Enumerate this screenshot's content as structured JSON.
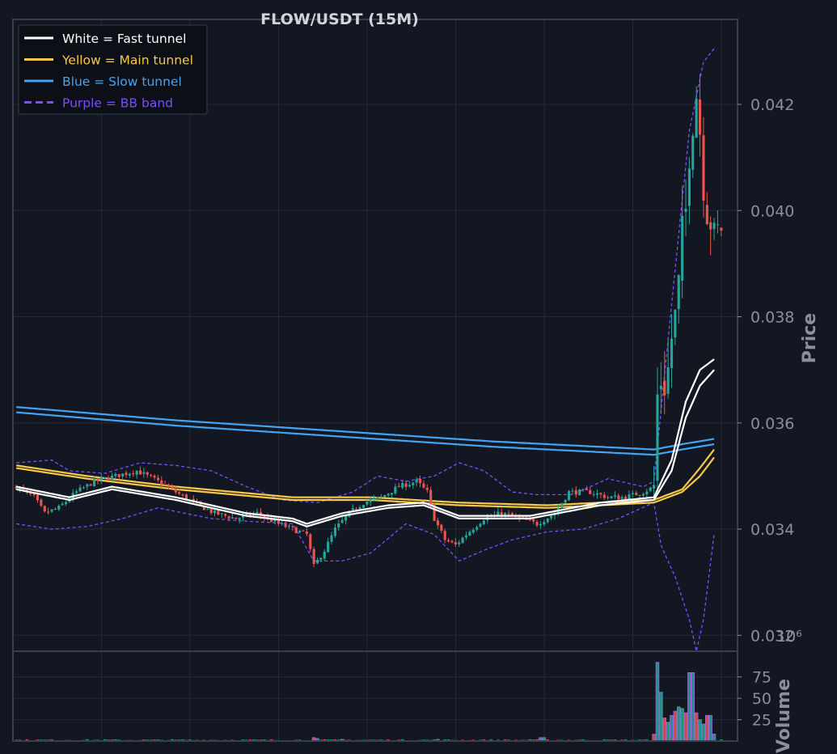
{
  "colors": {
    "background": "#131722",
    "frame": "#3a3e4a",
    "grid": "#252a36",
    "up": "#26a69a",
    "down": "#ef5350",
    "fast": "#ffffff",
    "main": "#f7c948",
    "slow": "#42a5f5",
    "bb": "#7c4dff",
    "text": "#8a8f99",
    "title": "#d1d4dc"
  },
  "chart_data": {
    "type": "candlestick",
    "title": "FLOW/USDT (15M)",
    "price_axis": {
      "label": "Price",
      "ylim": [
        0.0317,
        0.0436
      ],
      "ticks": [
        "0.032",
        "0.034",
        "0.036",
        "0.038",
        "0.040",
        "0.042"
      ],
      "side": "right"
    },
    "volume_axis": {
      "label": "Volume",
      "multiplier": "10⁶",
      "ylim": [
        0,
        105
      ],
      "ticks": [
        "25",
        "50",
        "75"
      ]
    },
    "grid": true,
    "legend": {
      "placement": "top-left",
      "entries": [
        {
          "label": "White = Fast tunnel",
          "color": "#ffffff",
          "style": "solid"
        },
        {
          "label": "Yellow = Main tunnel",
          "color": "#f7c948",
          "style": "solid"
        },
        {
          "label": "Blue = Slow tunnel",
          "color": "#42a5f5",
          "style": "solid"
        },
        {
          "label": "Purple = BB band",
          "color": "#7c4dff",
          "style": "dashed"
        }
      ]
    },
    "candle_count": 200,
    "price_path": [
      [
        0,
        0.0348
      ],
      [
        5,
        0.0346
      ],
      [
        8,
        0.0343
      ],
      [
        12,
        0.0344
      ],
      [
        17,
        0.0347
      ],
      [
        22,
        0.0349
      ],
      [
        28,
        0.035
      ],
      [
        34,
        0.0351
      ],
      [
        40,
        0.0349
      ],
      [
        45,
        0.0347
      ],
      [
        50,
        0.0345
      ],
      [
        56,
        0.0343
      ],
      [
        62,
        0.0342
      ],
      [
        68,
        0.0343
      ],
      [
        74,
        0.0341
      ],
      [
        78,
        0.034
      ],
      [
        82,
        0.0339
      ],
      [
        84,
        0.0333
      ],
      [
        87,
        0.0336
      ],
      [
        90,
        0.034
      ],
      [
        94,
        0.0343
      ],
      [
        98,
        0.0345
      ],
      [
        103,
        0.0346
      ],
      [
        108,
        0.0348
      ],
      [
        113,
        0.0349
      ],
      [
        116,
        0.0347
      ],
      [
        118,
        0.0342
      ],
      [
        121,
        0.0338
      ],
      [
        124,
        0.0337
      ],
      [
        127,
        0.0339
      ],
      [
        132,
        0.0342
      ],
      [
        137,
        0.0343
      ],
      [
        142,
        0.0342
      ],
      [
        147,
        0.0341
      ],
      [
        152,
        0.0343
      ],
      [
        156,
        0.0347
      ],
      [
        162,
        0.0347
      ],
      [
        167,
        0.0346
      ],
      [
        172,
        0.0346
      ],
      [
        177,
        0.0347
      ],
      [
        180,
        0.0348
      ],
      [
        181,
        0.0365
      ],
      [
        182,
        0.0368
      ],
      [
        183,
        0.0367
      ],
      [
        184,
        0.037
      ],
      [
        185,
        0.0376
      ],
      [
        186,
        0.038
      ],
      [
        187,
        0.0386
      ],
      [
        188,
        0.0396
      ],
      [
        189,
        0.04
      ],
      [
        190,
        0.0411
      ],
      [
        191,
        0.0417
      ],
      [
        192,
        0.0422
      ],
      [
        193,
        0.0415
      ],
      [
        194,
        0.0405
      ],
      [
        195,
        0.04
      ],
      [
        196,
        0.0398
      ],
      [
        197,
        0.0395
      ],
      [
        198,
        0.0396
      ],
      [
        199,
        0.0397
      ]
    ],
    "fast_tunnel": [
      [
        [
          0,
          0.0348
        ],
        [
          15,
          0.0346
        ],
        [
          27,
          0.0348
        ],
        [
          45,
          0.0346
        ],
        [
          65,
          0.0343
        ],
        [
          78,
          0.0342
        ],
        [
          82,
          0.0341
        ],
        [
          92,
          0.0343
        ],
        [
          105,
          0.03445
        ],
        [
          115,
          0.0345
        ],
        [
          125,
          0.03425
        ],
        [
          145,
          0.03425
        ],
        [
          165,
          0.0345
        ],
        [
          180,
          0.0346
        ],
        [
          185,
          0.0353
        ],
        [
          189,
          0.0364
        ],
        [
          193,
          0.037
        ],
        [
          197,
          0.0372
        ]
      ],
      [
        [
          0,
          0.03475
        ],
        [
          15,
          0.03455
        ],
        [
          27,
          0.03475
        ],
        [
          45,
          0.03455
        ],
        [
          65,
          0.03425
        ],
        [
          78,
          0.03415
        ],
        [
          82,
          0.03405
        ],
        [
          92,
          0.03425
        ],
        [
          105,
          0.0344
        ],
        [
          115,
          0.03445
        ],
        [
          125,
          0.0342
        ],
        [
          145,
          0.0342
        ],
        [
          165,
          0.03445
        ],
        [
          180,
          0.03455
        ],
        [
          185,
          0.0351
        ],
        [
          189,
          0.0361
        ],
        [
          193,
          0.0367
        ],
        [
          197,
          0.037
        ]
      ]
    ],
    "main_tunnel": [
      [
        [
          0,
          0.0352
        ],
        [
          20,
          0.035
        ],
        [
          45,
          0.0348
        ],
        [
          78,
          0.0346
        ],
        [
          100,
          0.0346
        ],
        [
          125,
          0.0345
        ],
        [
          150,
          0.03445
        ],
        [
          180,
          0.03455
        ],
        [
          188,
          0.03475
        ],
        [
          193,
          0.03515
        ],
        [
          197,
          0.0355
        ]
      ],
      [
        [
          0,
          0.03515
        ],
        [
          20,
          0.03495
        ],
        [
          45,
          0.03475
        ],
        [
          78,
          0.03455
        ],
        [
          100,
          0.03455
        ],
        [
          125,
          0.03445
        ],
        [
          150,
          0.0344
        ],
        [
          180,
          0.0345
        ],
        [
          188,
          0.0347
        ],
        [
          193,
          0.035
        ],
        [
          197,
          0.03535
        ]
      ]
    ],
    "slow_tunnel": [
      [
        [
          0,
          0.0363
        ],
        [
          45,
          0.03605
        ],
        [
          90,
          0.03585
        ],
        [
          135,
          0.03565
        ],
        [
          180,
          0.0355
        ],
        [
          188,
          0.0356
        ],
        [
          197,
          0.0357
        ]
      ],
      [
        [
          0,
          0.0362
        ],
        [
          45,
          0.03595
        ],
        [
          90,
          0.03575
        ],
        [
          135,
          0.03555
        ],
        [
          180,
          0.0354
        ],
        [
          188,
          0.0355
        ],
        [
          197,
          0.0356
        ]
      ]
    ],
    "bb_upper": [
      [
        0,
        0.03525
      ],
      [
        10,
        0.0353
      ],
      [
        15,
        0.0351
      ],
      [
        25,
        0.03505
      ],
      [
        35,
        0.03525
      ],
      [
        45,
        0.0352
      ],
      [
        55,
        0.0351
      ],
      [
        65,
        0.0348
      ],
      [
        75,
        0.03455
      ],
      [
        85,
        0.0345
      ],
      [
        95,
        0.0347
      ],
      [
        102,
        0.035
      ],
      [
        110,
        0.0349
      ],
      [
        118,
        0.035
      ],
      [
        125,
        0.03525
      ],
      [
        132,
        0.0351
      ],
      [
        140,
        0.0347
      ],
      [
        147,
        0.03465
      ],
      [
        157,
        0.03465
      ],
      [
        167,
        0.03495
      ],
      [
        177,
        0.0348
      ],
      [
        180,
        0.0349
      ],
      [
        186,
        0.0389
      ],
      [
        190,
        0.0415
      ],
      [
        194,
        0.0428
      ],
      [
        197,
        0.04305
      ]
    ],
    "bb_lower": [
      [
        0,
        0.0341
      ],
      [
        10,
        0.034
      ],
      [
        20,
        0.03405
      ],
      [
        30,
        0.0342
      ],
      [
        40,
        0.0344
      ],
      [
        55,
        0.0342
      ],
      [
        65,
        0.03415
      ],
      [
        78,
        0.0341
      ],
      [
        84,
        0.0334
      ],
      [
        92,
        0.0334
      ],
      [
        100,
        0.03355
      ],
      [
        110,
        0.0341
      ],
      [
        118,
        0.0339
      ],
      [
        125,
        0.0334
      ],
      [
        132,
        0.0336
      ],
      [
        140,
        0.0338
      ],
      [
        150,
        0.03395
      ],
      [
        160,
        0.034
      ],
      [
        170,
        0.0342
      ],
      [
        180,
        0.0345
      ],
      [
        182,
        0.0337
      ],
      [
        186,
        0.0331
      ],
      [
        190,
        0.0323
      ],
      [
        192,
        0.0317
      ],
      [
        194,
        0.0323
      ],
      [
        197,
        0.0339
      ]
    ],
    "volume": {
      "baseline": 1.5,
      "spikes": [
        [
          84,
          4
        ],
        [
          85,
          3
        ],
        [
          92,
          2
        ],
        [
          119,
          2
        ],
        [
          148,
          4
        ],
        [
          149,
          4
        ],
        [
          180,
          8
        ],
        [
          181,
          92
        ],
        [
          182,
          57
        ],
        [
          183,
          27
        ],
        [
          184,
          22
        ],
        [
          185,
          30
        ],
        [
          186,
          35
        ],
        [
          187,
          40
        ],
        [
          188,
          38
        ],
        [
          189,
          33
        ],
        [
          190,
          80
        ],
        [
          191,
          80
        ],
        [
          192,
          33
        ],
        [
          193,
          25
        ],
        [
          194,
          20
        ],
        [
          195,
          30
        ],
        [
          196,
          30
        ],
        [
          197,
          8
        ]
      ]
    }
  }
}
